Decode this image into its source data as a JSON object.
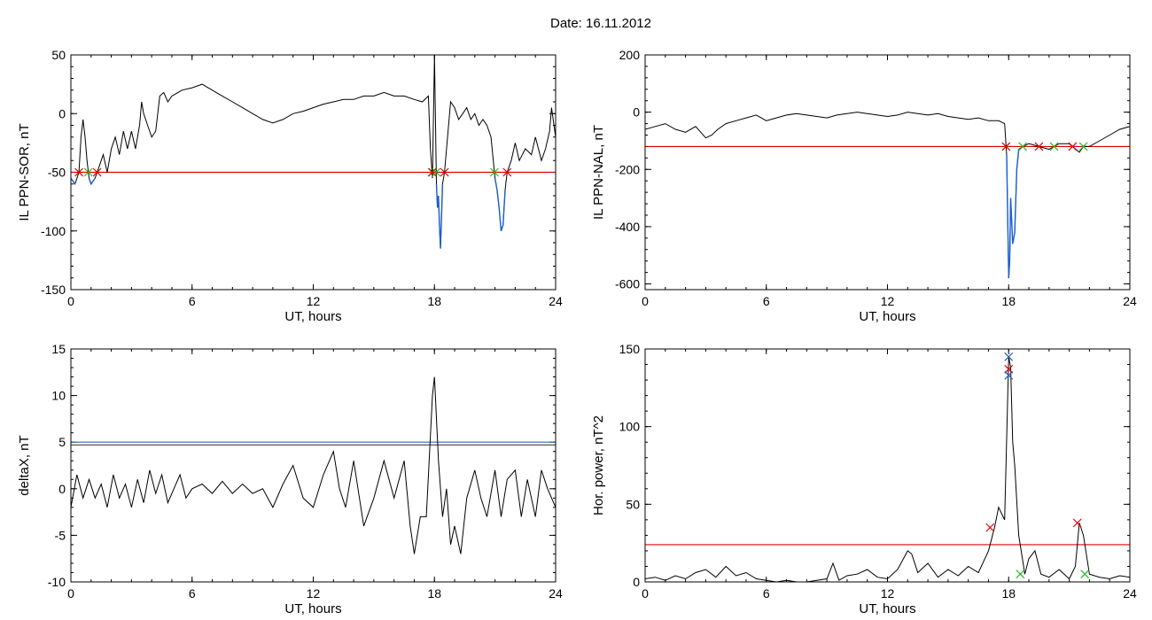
{
  "page": {
    "title": "Date:  16.11.2012"
  },
  "colors": {
    "trace": "#000000",
    "active": "#1a5fd0",
    "threshold": "#e00000",
    "threshold2": "#2a6fb0",
    "marker_red": "#e00000",
    "marker_green": "#22bb22",
    "marker_blue": "#2060c0"
  },
  "chart_data": [
    {
      "id": "sor",
      "type": "line",
      "xlabel": "UT, hours",
      "ylabel": "IL PPN-SOR, nT",
      "xlim": [
        0,
        24
      ],
      "ylim": [
        -150,
        50
      ],
      "xticks": [
        0,
        6,
        12,
        18,
        24
      ],
      "yticks": [
        -150,
        -100,
        -50,
        0,
        50
      ],
      "threshold": -50,
      "x": [
        0,
        0.2,
        0.4,
        0.5,
        0.6,
        0.7,
        0.8,
        0.9,
        1.0,
        1.2,
        1.4,
        1.6,
        1.8,
        2.0,
        2.2,
        2.4,
        2.6,
        2.8,
        3.0,
        3.2,
        3.4,
        3.5,
        3.6,
        3.8,
        4.0,
        4.2,
        4.4,
        4.6,
        4.8,
        5.0,
        5.5,
        6.0,
        6.5,
        7.0,
        7.5,
        8.0,
        8.5,
        9.0,
        9.5,
        10.0,
        10.5,
        11.0,
        11.5,
        12.0,
        12.5,
        13.0,
        13.5,
        14.0,
        14.5,
        15.0,
        15.5,
        16.0,
        16.5,
        17.0,
        17.4,
        17.7,
        17.8,
        17.9,
        18.0,
        18.1,
        18.15,
        18.2,
        18.25,
        18.3,
        18.4,
        18.5,
        18.6,
        18.8,
        19.0,
        19.2,
        19.4,
        19.6,
        19.8,
        20.0,
        20.2,
        20.4,
        20.6,
        20.8,
        21.0,
        21.1,
        21.2,
        21.3,
        21.4,
        21.5,
        21.6,
        21.8,
        22.0,
        22.2,
        22.5,
        22.8,
        23.0,
        23.3,
        23.5,
        23.7,
        23.8,
        24.0
      ],
      "y": [
        -55,
        -60,
        -50,
        -20,
        -5,
        -20,
        -40,
        -55,
        -60,
        -55,
        -45,
        -35,
        -50,
        -30,
        -20,
        -35,
        -15,
        -30,
        -15,
        -30,
        -10,
        10,
        0,
        -10,
        -20,
        -15,
        15,
        18,
        10,
        15,
        20,
        22,
        25,
        20,
        15,
        10,
        5,
        0,
        -5,
        -8,
        -5,
        0,
        2,
        5,
        8,
        10,
        12,
        12,
        15,
        15,
        18,
        15,
        15,
        12,
        10,
        15,
        -30,
        -55,
        50,
        -60,
        -80,
        -70,
        -95,
        -115,
        -60,
        -50,
        -30,
        10,
        5,
        -5,
        0,
        5,
        -5,
        0,
        -10,
        -5,
        -10,
        -20,
        -55,
        -65,
        -80,
        -100,
        -95,
        -65,
        -50,
        -40,
        -25,
        -40,
        -30,
        -35,
        -20,
        -40,
        -30,
        -15,
        5,
        -20
      ]
    },
    {
      "id": "nal",
      "type": "line",
      "xlabel": "UT, hours",
      "ylabel": "IL PPN-NAL, nT",
      "xlim": [
        0,
        24
      ],
      "ylim": [
        -620,
        200
      ],
      "xticks": [
        0,
        6,
        12,
        18,
        24
      ],
      "yticks": [
        -600,
        -400,
        -200,
        0,
        200
      ],
      "threshold": -120,
      "x": [
        0,
        0.5,
        1.0,
        1.5,
        2.0,
        2.5,
        3.0,
        3.3,
        3.6,
        4.0,
        4.5,
        5.0,
        5.5,
        6.0,
        6.5,
        7.0,
        7.5,
        8.0,
        8.5,
        9.0,
        9.5,
        10.0,
        10.5,
        11.0,
        11.5,
        12.0,
        12.5,
        13.0,
        13.5,
        14.0,
        14.5,
        15.0,
        15.5,
        16.0,
        16.5,
        17.0,
        17.5,
        17.8,
        17.9,
        18.0,
        18.05,
        18.1,
        18.2,
        18.3,
        18.4,
        18.5,
        18.7,
        19.0,
        19.5,
        20.0,
        20.5,
        21.0,
        21.5,
        21.7,
        22.0,
        22.5,
        23.0,
        23.5,
        24.0
      ],
      "y": [
        -60,
        -50,
        -40,
        -60,
        -70,
        -50,
        -90,
        -80,
        -60,
        -40,
        -30,
        -20,
        -10,
        -30,
        -20,
        -10,
        -5,
        -10,
        -15,
        -20,
        -10,
        -5,
        0,
        -5,
        -10,
        -15,
        -10,
        0,
        -5,
        -10,
        -5,
        -15,
        -20,
        -25,
        -20,
        -30,
        -30,
        -40,
        -150,
        -580,
        -520,
        -300,
        -460,
        -420,
        -200,
        -130,
        -120,
        -110,
        -120,
        -130,
        -110,
        -110,
        -140,
        -120,
        -120,
        -100,
        -80,
        -60,
        -50
      ]
    },
    {
      "id": "deltax",
      "type": "line",
      "xlabel": "UT, hours",
      "ylabel": "deltaX, nT",
      "xlim": [
        0,
        24
      ],
      "ylim": [
        -10,
        15
      ],
      "xticks": [
        0,
        6,
        12,
        18,
        24
      ],
      "yticks": [
        -10,
        -5,
        0,
        5,
        10,
        15
      ],
      "threshold_lines": [
        5.0,
        4.7
      ],
      "x": [
        0,
        0.3,
        0.6,
        0.9,
        1.2,
        1.5,
        1.8,
        2.1,
        2.4,
        2.7,
        3.0,
        3.3,
        3.6,
        3.9,
        4.2,
        4.5,
        4.8,
        5.1,
        5.4,
        5.7,
        6.0,
        6.5,
        7.0,
        7.5,
        8.0,
        8.5,
        9.0,
        9.5,
        10.0,
        10.5,
        11.0,
        11.5,
        12.0,
        12.5,
        13.0,
        13.3,
        13.6,
        14.0,
        14.5,
        15.0,
        15.5,
        16.0,
        16.5,
        16.8,
        17.0,
        17.3,
        17.6,
        17.9,
        18.0,
        18.2,
        18.4,
        18.6,
        18.8,
        19.0,
        19.3,
        19.6,
        20.0,
        20.3,
        20.6,
        21.0,
        21.3,
        21.6,
        22.0,
        22.3,
        22.6,
        23.0,
        23.3,
        23.6,
        24.0
      ],
      "y": [
        -2,
        1.5,
        -1,
        1,
        -1,
        0.5,
        -2,
        1.5,
        -1,
        0.5,
        -2,
        1,
        -1.5,
        2,
        -0.5,
        1.5,
        -1.5,
        0,
        1.5,
        -1,
        0,
        0.5,
        -0.5,
        0.8,
        -0.5,
        0.5,
        -0.5,
        0,
        -2,
        0.5,
        2.5,
        -1,
        -2,
        1.5,
        4,
        0,
        -2,
        3,
        -4,
        -1,
        3,
        -1,
        3,
        -4,
        -7,
        -3,
        -3,
        10,
        12,
        3,
        -3,
        0,
        -6,
        -4,
        -7,
        -1,
        2,
        -1,
        -3,
        2,
        -3,
        1,
        2,
        -3,
        1,
        -3,
        2,
        0,
        -2
      ]
    },
    {
      "id": "power",
      "type": "line",
      "xlabel": "UT, hours",
      "ylabel": "Hor. power, nT^2",
      "xlim": [
        0,
        24
      ],
      "ylim": [
        0,
        150
      ],
      "xticks": [
        0,
        6,
        12,
        18,
        24
      ],
      "yticks": [
        0,
        50,
        100,
        150
      ],
      "threshold": 24,
      "x": [
        0,
        0.5,
        1.0,
        1.5,
        2.0,
        2.5,
        3.0,
        3.5,
        4.0,
        4.5,
        5.0,
        5.5,
        6.0,
        6.5,
        7.0,
        7.5,
        8.0,
        8.5,
        9.0,
        9.3,
        9.6,
        10.0,
        10.5,
        11.0,
        11.5,
        12.0,
        12.5,
        13.0,
        13.2,
        13.5,
        14.0,
        14.5,
        15.0,
        15.5,
        16.0,
        16.5,
        17.0,
        17.3,
        17.5,
        17.8,
        18.0,
        18.1,
        18.2,
        18.3,
        18.5,
        18.8,
        19.0,
        19.3,
        19.6,
        20.0,
        20.5,
        21.0,
        21.3,
        21.5,
        21.7,
        22.0,
        22.5,
        23.0,
        23.5,
        24.0
      ],
      "y": [
        2,
        3,
        1,
        4,
        2,
        6,
        8,
        3,
        10,
        4,
        6,
        2,
        1,
        0,
        1,
        0,
        0,
        1,
        2,
        12,
        1,
        4,
        5,
        8,
        3,
        2,
        8,
        20,
        18,
        6,
        12,
        3,
        8,
        4,
        10,
        6,
        20,
        35,
        48,
        40,
        145,
        138,
        90,
        75,
        30,
        5,
        15,
        20,
        5,
        3,
        8,
        2,
        10,
        38,
        30,
        5,
        3,
        2,
        4,
        3
      ]
    }
  ]
}
